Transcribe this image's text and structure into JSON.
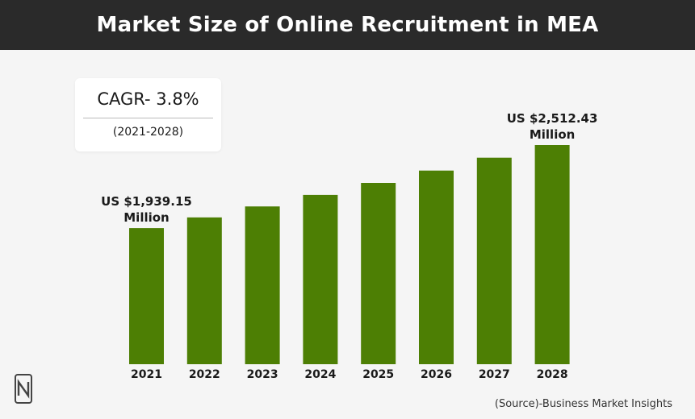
{
  "header": {
    "title": "Market Size of Online Recruitment in MEA"
  },
  "cagr": {
    "value": "CAGR- 3.8%",
    "period": "(2021-2028)"
  },
  "source_note": "(Source)-Business Market Insights",
  "colors": {
    "bar": "#4d7f04",
    "header_bg": "#2a2a2a",
    "background": "#f5f5f5"
  },
  "chart_data": {
    "type": "bar",
    "title": "Market Size of Online Recruitment in MEA",
    "xlabel": "",
    "ylabel": "",
    "categories": [
      "2021",
      "2022",
      "2023",
      "2024",
      "2025",
      "2026",
      "2027",
      "2028"
    ],
    "values": [
      1939.15,
      2013,
      2089,
      2168,
      2251,
      2336,
      2425,
      2512.43
    ],
    "unit": "US$ Million",
    "ylim": [
      0,
      2512.43
    ],
    "grid": false,
    "legend": "none",
    "annotations": [
      {
        "category": "2021",
        "lines": [
          "US $1,939.15",
          "Million"
        ]
      },
      {
        "category": "2028",
        "lines": [
          "US $2,512.43",
          "Million"
        ]
      }
    ]
  }
}
